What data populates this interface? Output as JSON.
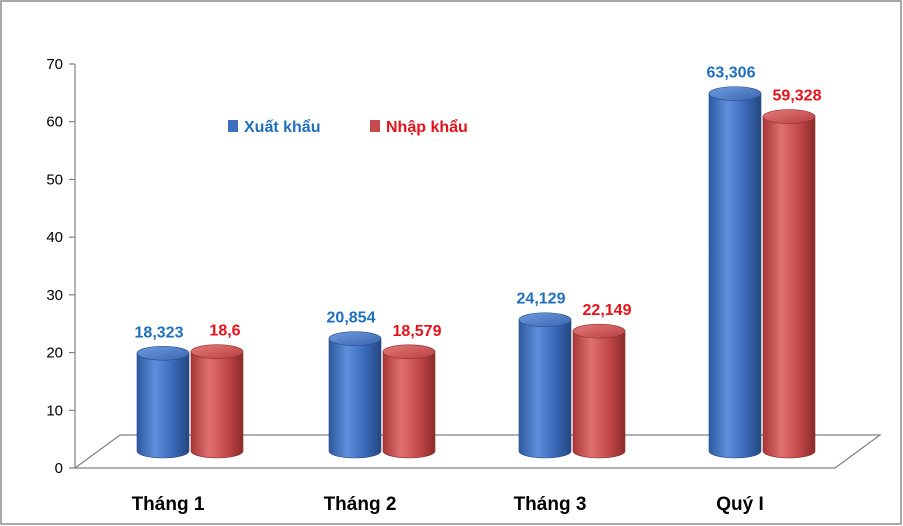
{
  "chart_data": {
    "type": "bar",
    "categories": [
      "Tháng 1",
      "Tháng 2",
      "Tháng 3",
      "Quý I"
    ],
    "series": [
      {
        "name": "Xuất khẩu",
        "values": [
          18.323,
          20.854,
          24.129,
          63.306
        ],
        "labels": [
          "18,323",
          "20,854",
          "24,129",
          "63,306"
        ],
        "color": "#3d6fc0",
        "label_color": "#1f6fbf"
      },
      {
        "name": "Nhập khẩu",
        "values": [
          18.6,
          18.579,
          22.149,
          59.328
        ],
        "labels": [
          "18,6",
          "18,579",
          "22,149",
          "59,328"
        ],
        "color": "#c44b4b",
        "label_color": "#e8101a"
      }
    ],
    "yticks": [
      "0",
      "10",
      "20",
      "30",
      "40",
      "50",
      "60",
      "70"
    ],
    "ylim": [
      0,
      70
    ],
    "legend_placement": "top-left",
    "style": "3d-cylinder",
    "grid": false
  }
}
